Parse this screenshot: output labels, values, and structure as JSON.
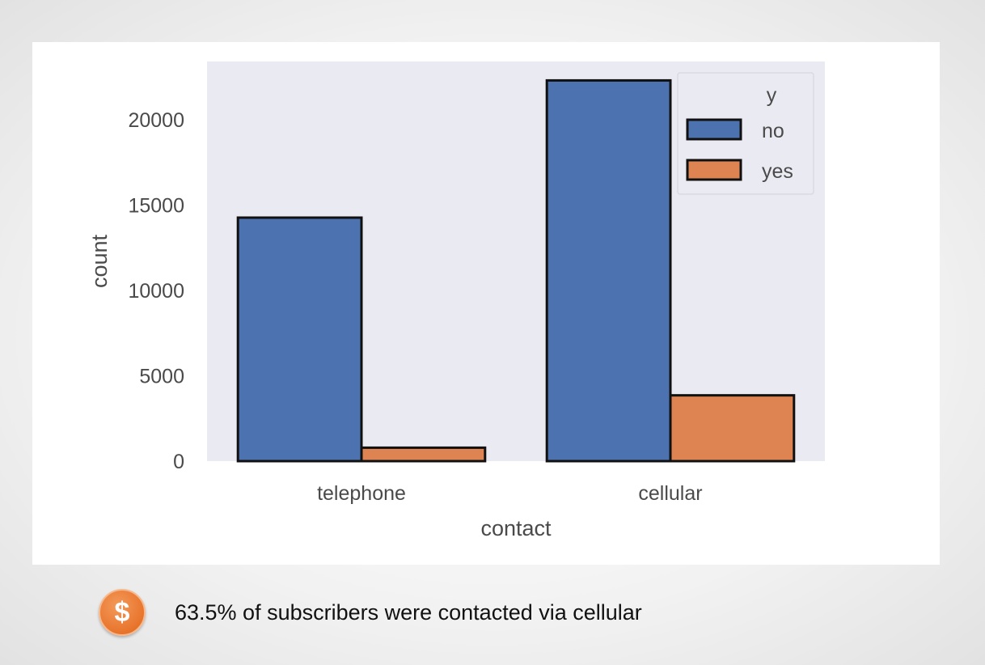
{
  "chart_data": {
    "type": "bar",
    "categories": [
      "telephone",
      "cellular"
    ],
    "series": [
      {
        "name": "no",
        "values": [
          14257,
          22291
        ],
        "color": "#4c72b0"
      },
      {
        "name": "yes",
        "values": [
          787,
          3853
        ],
        "color": "#dd8452"
      }
    ],
    "xlabel": "contact",
    "ylabel": "count",
    "ylim": [
      0,
      23400
    ],
    "yticks": [
      0,
      5000,
      10000,
      15000,
      20000
    ],
    "legend_title": "y",
    "legend_position": "top-right",
    "grid": false,
    "plot_background": "#eaeaf2"
  },
  "footer": {
    "icon": "dollar-icon",
    "icon_symbol": "$",
    "text": "63.5% of subscribers were contacted via cellular"
  }
}
